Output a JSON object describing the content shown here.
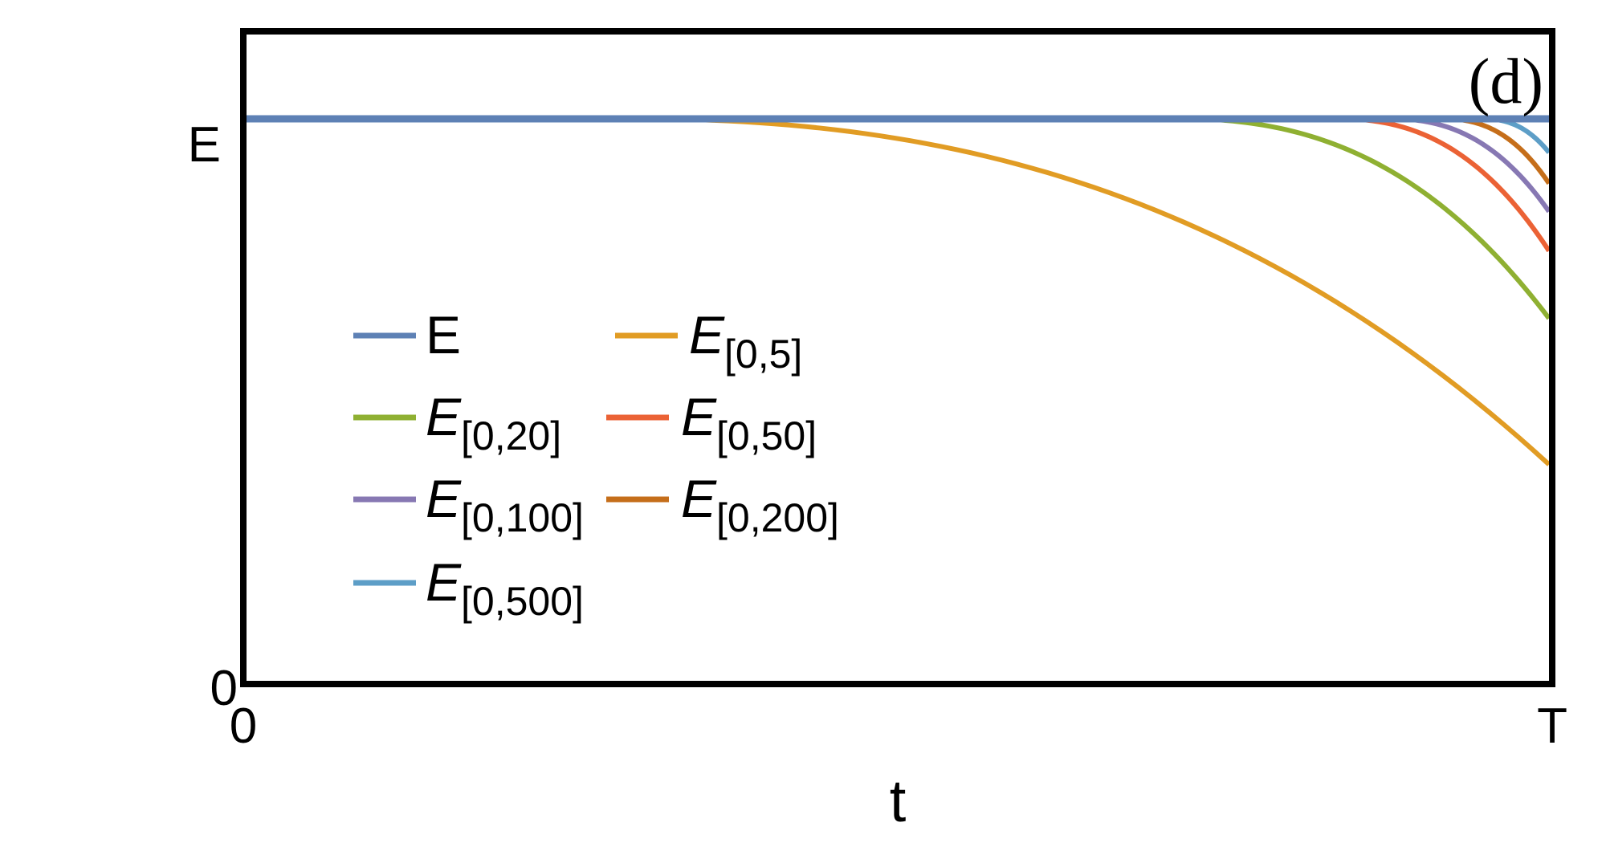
{
  "chart_data": {
    "type": "line",
    "panel_label": "(d)",
    "xlabel": "t",
    "ylabel": "",
    "x_ticks": [
      "0",
      "T"
    ],
    "y_ticks": [
      "0",
      "E"
    ],
    "xlim": [
      0,
      1
    ],
    "ylim": [
      0,
      1.15
    ],
    "grid": false,
    "legend": {
      "placement": "left-middle",
      "columns": 2
    },
    "series": [
      {
        "name": "E",
        "base": "E",
        "sub": "",
        "italic": false,
        "color": "#5e81b5",
        "onset": 0,
        "final": 1.0,
        "x": [
          0,
          0.25,
          0.5,
          0.75,
          1.0
        ],
        "y": [
          1,
          1,
          1,
          1,
          1
        ]
      },
      {
        "name": "E[0,5]",
        "base": "E",
        "sub": "[0,5]",
        "italic": true,
        "color": "#e19c24",
        "onset": 0.3,
        "final": 0.385,
        "x": [
          0,
          0.3,
          0.4,
          0.5,
          0.6,
          0.7,
          0.8,
          0.9,
          1.0
        ],
        "y": [
          1,
          1,
          0.99,
          0.96,
          0.9,
          0.8,
          0.69,
          0.53,
          0.385
        ]
      },
      {
        "name": "E[0,20]",
        "base": "E",
        "sub": "[0,20]",
        "italic": true,
        "color": "#8fb032",
        "onset": 0.72,
        "final": 0.645,
        "x": [
          0,
          0.72,
          0.8,
          0.85,
          0.9,
          0.95,
          1.0
        ],
        "y": [
          1,
          1,
          0.99,
          0.97,
          0.91,
          0.8,
          0.645
        ]
      },
      {
        "name": "E[0,50]",
        "base": "E",
        "sub": "[0,50]",
        "italic": true,
        "color": "#eb6235",
        "onset": 0.84,
        "final": 0.765,
        "x": [
          0,
          0.84,
          0.9,
          0.95,
          1.0
        ],
        "y": [
          1,
          1,
          0.97,
          0.89,
          0.765
        ]
      },
      {
        "name": "E[0,100]",
        "base": "E",
        "sub": "[0,100]",
        "italic": true,
        "color": "#8778b3",
        "onset": 0.88,
        "final": 0.835,
        "x": [
          0,
          0.88,
          0.92,
          0.96,
          1.0
        ],
        "y": [
          1,
          1,
          0.98,
          0.93,
          0.835
        ]
      },
      {
        "name": "E[0,200]",
        "base": "E",
        "sub": "[0,200]",
        "italic": true,
        "color": "#c56e1a",
        "onset": 0.92,
        "final": 0.885,
        "x": [
          0,
          0.92,
          0.96,
          1.0
        ],
        "y": [
          1,
          1,
          0.97,
          0.885
        ]
      },
      {
        "name": "E[0,500]",
        "base": "E",
        "sub": "[0,500]",
        "italic": true,
        "color": "#5d9ec7",
        "onset": 0.95,
        "final": 0.94,
        "x": [
          0,
          0.95,
          0.98,
          1.0
        ],
        "y": [
          1,
          1,
          0.98,
          0.94
        ]
      }
    ]
  }
}
